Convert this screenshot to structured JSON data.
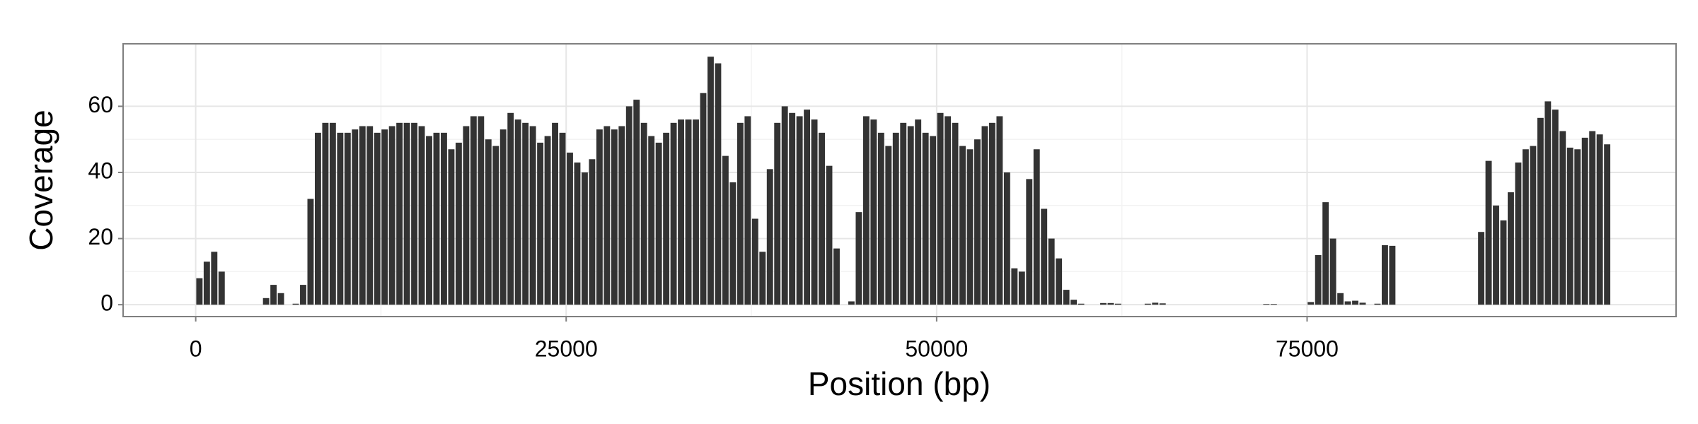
{
  "chart_data": {
    "type": "histogram",
    "xlabel": "Position (bp)",
    "ylabel": "Coverage",
    "bins": [
      0,
      500,
      1000,
      1500,
      2000,
      2500,
      3000,
      3500,
      4000,
      4500,
      5000,
      5500,
      6000,
      6500,
      7000,
      7500,
      8000,
      8500,
      9000,
      9500,
      10000,
      10500,
      11000,
      11500,
      12000,
      12500,
      13000,
      13500,
      14000,
      14500,
      15000,
      15500,
      16000,
      16500,
      17000,
      17500,
      18000,
      18500,
      19000,
      19500,
      20000,
      20500,
      21000,
      21500,
      22000,
      22500,
      23000,
      23500,
      24000,
      24500,
      25000,
      25500,
      26000,
      26500,
      27000,
      27500,
      28000,
      28500,
      29000,
      29500,
      30000,
      30500,
      31000,
      31500,
      32000,
      32500,
      33000,
      33500,
      34000,
      34500,
      35000,
      35500,
      36000,
      36500,
      37000,
      37500,
      38000,
      38500,
      39000,
      39500,
      40000,
      40500,
      41000,
      41500,
      42000,
      42500,
      43000,
      43500,
      44000,
      44500,
      45000,
      45500,
      46000,
      46500,
      47000,
      47500,
      48000,
      48500,
      49000,
      49500,
      50000,
      50500,
      51000,
      51500,
      52000,
      52500,
      53000,
      53500,
      54000,
      54500,
      55000,
      55500,
      56000,
      56500,
      57000,
      57500,
      58000,
      58500,
      59000,
      59500,
      60000,
      60500,
      61000,
      61500,
      62000,
      62500,
      63000,
      63500,
      64000,
      64500,
      65000,
      65500,
      66000,
      66500,
      67000,
      67500,
      68000,
      68500,
      69000,
      69500,
      70000,
      70500,
      71000,
      71500,
      72000,
      72500,
      73000,
      73500,
      74000,
      74500,
      75000,
      75500,
      76000,
      76500,
      77000,
      77500,
      78000,
      78500,
      79000,
      79500,
      80000,
      80500,
      81000,
      81500,
      82000,
      82500,
      83000,
      83500,
      84000,
      84500,
      85000,
      85500,
      86000,
      86500,
      87000,
      87500,
      88000,
      88500,
      89000,
      89500,
      90000,
      90500,
      91000,
      91500,
      92000,
      92500,
      93000,
      93500,
      94000,
      94500,
      95000,
      95500
    ],
    "values": [
      8,
      13,
      16,
      10,
      0,
      0,
      0,
      0,
      0,
      2,
      6,
      3.5,
      0,
      0.3,
      6,
      32,
      52,
      55,
      55,
      52,
      52,
      53,
      54,
      54,
      52,
      53,
      54,
      55,
      55,
      55,
      54,
      51,
      52,
      52,
      47,
      49,
      54,
      57,
      57,
      50,
      48,
      53,
      58,
      56,
      55,
      54,
      49,
      51,
      55,
      52,
      46,
      43,
      40,
      44,
      53,
      54,
      53,
      54,
      60,
      62,
      55,
      51,
      49,
      52,
      55,
      56,
      56,
      56,
      64,
      75,
      73,
      45,
      37,
      55,
      57,
      26,
      16,
      41,
      55,
      60,
      58,
      57,
      59,
      56,
      52,
      42,
      17,
      0,
      1,
      28,
      57,
      56,
      52,
      48,
      52,
      55,
      54,
      56,
      52,
      51,
      58,
      57,
      55,
      48,
      47,
      50,
      54,
      55,
      57,
      40,
      11,
      10,
      38,
      47,
      29,
      20,
      14,
      4.5,
      1.5,
      0.3,
      0,
      0,
      0.5,
      0.5,
      0.3,
      0,
      0,
      0,
      0.3,
      0.6,
      0.4,
      0,
      0,
      0,
      0,
      0,
      0,
      0,
      0,
      0,
      0,
      0,
      0,
      0,
      0.2,
      0.2,
      0,
      0,
      0,
      0,
      0.8,
      15,
      31,
      20,
      3.5,
      1,
      1.2,
      0.6,
      0,
      0.3,
      18,
      17.8,
      0,
      0,
      0,
      0,
      0,
      0,
      0,
      0,
      0,
      0,
      0,
      22,
      43.5,
      30,
      25.5,
      34,
      43,
      47,
      48,
      56.5,
      61.5,
      59,
      52.5,
      47.5,
      47,
      50.5,
      52.5,
      51.5,
      48.5
    ],
    "color": "#333333",
    "xlim": [
      -4900,
      99900
    ],
    "ylim": [
      -3.6,
      78.9
    ],
    "xticks": [
      0,
      25000,
      50000,
      75000
    ],
    "yticks": [
      0,
      20,
      40,
      60
    ],
    "grid": true
  }
}
